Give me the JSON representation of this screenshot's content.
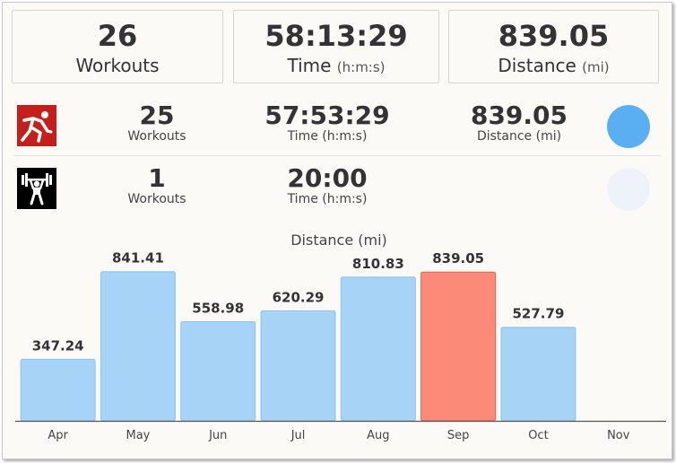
{
  "summary": {
    "workouts": {
      "value": "26",
      "label": "Workouts"
    },
    "time": {
      "value": "58:13:29",
      "label": "Time",
      "unit": "(h:m:s)"
    },
    "distance": {
      "value": "839.05",
      "label": "Distance",
      "unit": "(mi)"
    }
  },
  "activities": [
    {
      "icon": "running-icon",
      "color": "#c51f1c",
      "workouts": "25",
      "workouts_label": "Workouts",
      "time": "57:53:29",
      "time_label": "Time (h:m:s)",
      "distance": "839.05",
      "distance_label": "Distance (mi)",
      "dot_color": "#5aaef2"
    },
    {
      "icon": "weightlifting-icon",
      "color": "#000000",
      "workouts": "1",
      "workouts_label": "Workouts",
      "time": "20:00",
      "time_label": "Time (h:m:s)",
      "dot_color": "#eef3fa"
    }
  ],
  "chart_data": {
    "type": "bar",
    "title": "Distance (mi)",
    "categories": [
      "Apr",
      "May",
      "Jun",
      "Jul",
      "Aug",
      "Sep",
      "Oct",
      "Nov"
    ],
    "values": [
      347.24,
      841.41,
      558.98,
      620.29,
      810.83,
      839.05,
      527.79,
      null
    ],
    "value_labels": [
      "347.24",
      "841.41",
      "558.98",
      "620.29",
      "810.83",
      "839.05",
      "527.79",
      ""
    ],
    "highlight_index": 5,
    "colors": {
      "bar": "#a6d3f6",
      "bar_border": "#8cc3ec",
      "highlight": "#fb8b78",
      "highlight_border": "#e0634f"
    },
    "ylim": [
      0,
      870
    ],
    "grid": false
  }
}
